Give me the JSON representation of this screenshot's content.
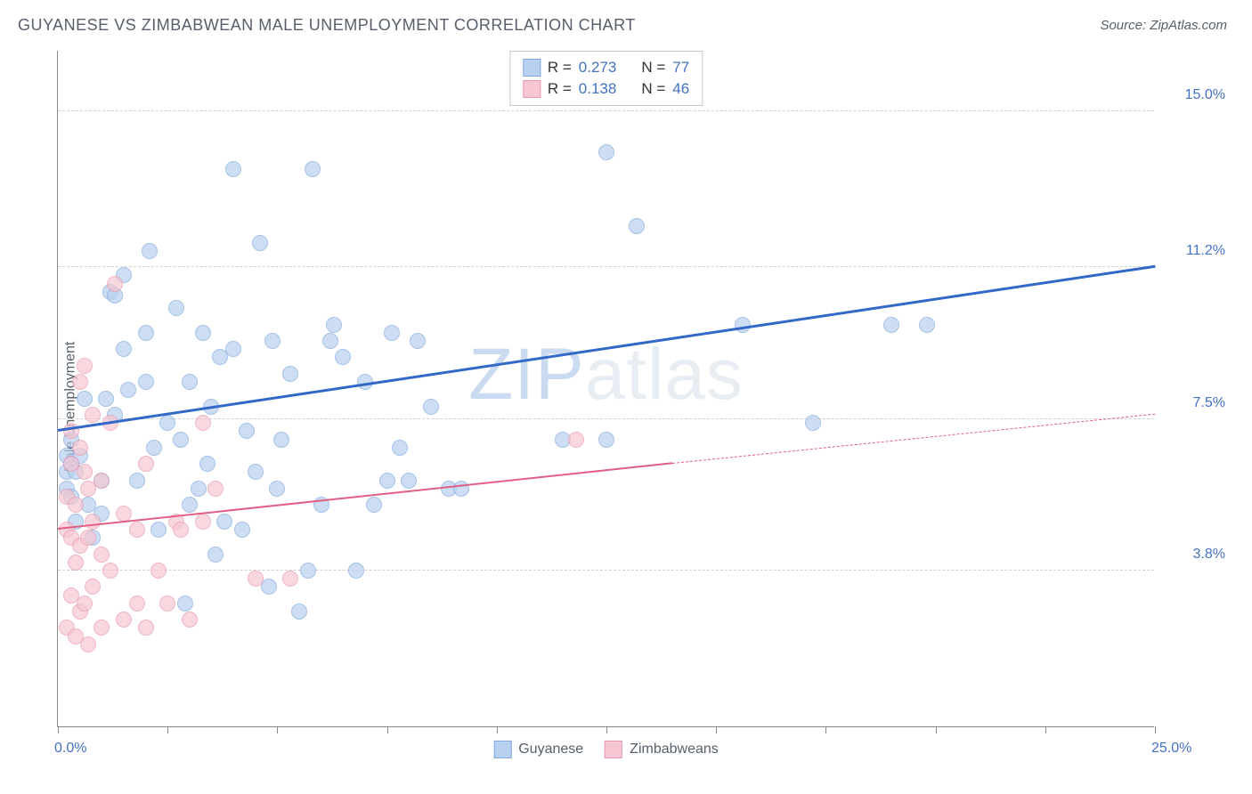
{
  "title": "GUYANESE VS ZIMBABWEAN MALE UNEMPLOYMENT CORRELATION CHART",
  "source_label": "Source: ZipAtlas.com",
  "ylabel": "Male Unemployment",
  "watermark": {
    "part1": "ZIP",
    "part2": "atlas"
  },
  "chart": {
    "type": "scatter",
    "xlim": [
      0,
      25
    ],
    "ylim": [
      0,
      16.5
    ],
    "background_color": "#ffffff",
    "grid_color": "#d0d0d0",
    "axis_color": "#888888",
    "x_ticks": [
      0,
      2.5,
      5,
      7.5,
      10,
      12.5,
      15,
      17.5,
      20,
      22.5,
      25
    ],
    "x_tick_labels": {
      "0": "0.0%",
      "25": "25.0%"
    },
    "y_gridlines": [
      3.8,
      7.5,
      11.2,
      15.0
    ],
    "y_tick_labels": [
      "3.8%",
      "7.5%",
      "11.2%",
      "15.0%"
    ],
    "point_radius": 9,
    "series": [
      {
        "name": "Guyanese",
        "fill_color": "#b8d0ef",
        "stroke_color": "#7fa9db",
        "fill_opacity": 0.7,
        "trend_color": "#3268c8",
        "trend": {
          "x1": 0,
          "y1": 7.2,
          "x2": 25,
          "y2": 11.2,
          "width": 2.5
        },
        "R": "0.273",
        "N": "77",
        "points": [
          [
            0.2,
            6.2
          ],
          [
            0.2,
            5.8
          ],
          [
            0.2,
            6.6
          ],
          [
            0.3,
            6.4
          ],
          [
            0.3,
            5.6
          ],
          [
            0.3,
            7.0
          ],
          [
            0.4,
            5.0
          ],
          [
            0.4,
            6.2
          ],
          [
            0.5,
            6.6
          ],
          [
            0.6,
            8.0
          ],
          [
            0.7,
            5.4
          ],
          [
            0.8,
            4.6
          ],
          [
            1.0,
            6.0
          ],
          [
            1.0,
            5.2
          ],
          [
            1.1,
            8.0
          ],
          [
            1.2,
            10.6
          ],
          [
            1.3,
            10.5
          ],
          [
            1.3,
            7.6
          ],
          [
            1.5,
            9.2
          ],
          [
            1.5,
            11.0
          ],
          [
            1.6,
            8.2
          ],
          [
            1.8,
            6.0
          ],
          [
            2.0,
            9.6
          ],
          [
            2.0,
            8.4
          ],
          [
            2.1,
            11.6
          ],
          [
            2.2,
            6.8
          ],
          [
            2.3,
            4.8
          ],
          [
            2.5,
            7.4
          ],
          [
            2.7,
            10.2
          ],
          [
            2.8,
            7.0
          ],
          [
            2.9,
            3.0
          ],
          [
            3.0,
            5.4
          ],
          [
            3.0,
            8.4
          ],
          [
            3.2,
            5.8
          ],
          [
            3.3,
            9.6
          ],
          [
            3.4,
            6.4
          ],
          [
            3.5,
            7.8
          ],
          [
            3.6,
            4.2
          ],
          [
            3.7,
            9.0
          ],
          [
            3.8,
            5.0
          ],
          [
            4.0,
            13.6
          ],
          [
            4.0,
            9.2
          ],
          [
            4.2,
            4.8
          ],
          [
            4.3,
            7.2
          ],
          [
            4.5,
            6.2
          ],
          [
            4.6,
            11.8
          ],
          [
            4.8,
            3.4
          ],
          [
            4.9,
            9.4
          ],
          [
            5.0,
            5.8
          ],
          [
            5.1,
            7.0
          ],
          [
            5.3,
            8.6
          ],
          [
            5.5,
            2.8
          ],
          [
            5.7,
            3.8
          ],
          [
            5.8,
            13.6
          ],
          [
            6.0,
            5.4
          ],
          [
            6.2,
            9.4
          ],
          [
            6.3,
            9.8
          ],
          [
            6.5,
            9.0
          ],
          [
            6.8,
            3.8
          ],
          [
            7.0,
            8.4
          ],
          [
            7.2,
            5.4
          ],
          [
            7.5,
            6.0
          ],
          [
            7.6,
            9.6
          ],
          [
            7.8,
            6.8
          ],
          [
            8.0,
            6.0
          ],
          [
            8.2,
            9.4
          ],
          [
            8.5,
            7.8
          ],
          [
            8.9,
            5.8
          ],
          [
            9.2,
            5.8
          ],
          [
            11.5,
            7.0
          ],
          [
            12.5,
            7.0
          ],
          [
            12.5,
            14.0
          ],
          [
            13.2,
            12.2
          ],
          [
            15.6,
            9.8
          ],
          [
            17.2,
            7.4
          ],
          [
            19.0,
            9.8
          ],
          [
            19.8,
            9.8
          ]
        ]
      },
      {
        "name": "Zimbabweans",
        "fill_color": "#f6c7d2",
        "stroke_color": "#e99ab0",
        "fill_opacity": 0.7,
        "trend_color": "#e15f84",
        "trend_solid": {
          "x1": 0,
          "y1": 4.8,
          "x2": 14,
          "y2": 6.4,
          "width": 2
        },
        "trend_dash": {
          "x1": 14,
          "y1": 6.4,
          "x2": 25,
          "y2": 7.6
        },
        "R": "0.138",
        "N": "46",
        "points": [
          [
            0.2,
            2.4
          ],
          [
            0.2,
            4.8
          ],
          [
            0.2,
            5.6
          ],
          [
            0.3,
            3.2
          ],
          [
            0.3,
            4.6
          ],
          [
            0.3,
            6.4
          ],
          [
            0.3,
            7.2
          ],
          [
            0.4,
            2.2
          ],
          [
            0.4,
            4.0
          ],
          [
            0.4,
            5.4
          ],
          [
            0.5,
            2.8
          ],
          [
            0.5,
            4.4
          ],
          [
            0.5,
            6.8
          ],
          [
            0.5,
            8.4
          ],
          [
            0.6,
            3.0
          ],
          [
            0.6,
            6.2
          ],
          [
            0.6,
            8.8
          ],
          [
            0.7,
            2.0
          ],
          [
            0.7,
            4.6
          ],
          [
            0.7,
            5.8
          ],
          [
            0.8,
            3.4
          ],
          [
            0.8,
            5.0
          ],
          [
            0.8,
            7.6
          ],
          [
            1.0,
            2.4
          ],
          [
            1.0,
            4.2
          ],
          [
            1.0,
            6.0
          ],
          [
            1.2,
            3.8
          ],
          [
            1.2,
            7.4
          ],
          [
            1.3,
            10.8
          ],
          [
            1.5,
            2.6
          ],
          [
            1.5,
            5.2
          ],
          [
            1.8,
            3.0
          ],
          [
            1.8,
            4.8
          ],
          [
            2.0,
            2.4
          ],
          [
            2.0,
            6.4
          ],
          [
            2.3,
            3.8
          ],
          [
            2.5,
            3.0
          ],
          [
            2.7,
            5.0
          ],
          [
            2.8,
            4.8
          ],
          [
            3.0,
            2.6
          ],
          [
            3.3,
            5.0
          ],
          [
            3.3,
            7.4
          ],
          [
            3.6,
            5.8
          ],
          [
            4.5,
            3.6
          ],
          [
            5.3,
            3.6
          ],
          [
            11.8,
            7.0
          ]
        ]
      }
    ]
  },
  "legend_top": {
    "rows": [
      {
        "swatch_fill": "#b8d0ef",
        "swatch_stroke": "#7fa9db",
        "R_label": "R =",
        "R": "0.273",
        "N_label": "N =",
        "N": "77"
      },
      {
        "swatch_fill": "#f6c7d2",
        "swatch_stroke": "#e99ab0",
        "R_label": "R =",
        "R": "0.138",
        "N_label": "N =",
        "N": "46"
      }
    ]
  },
  "legend_bottom": {
    "items": [
      {
        "swatch_fill": "#b8d0ef",
        "swatch_stroke": "#7fa9db",
        "label": "Guyanese"
      },
      {
        "swatch_fill": "#f6c7d2",
        "swatch_stroke": "#e99ab0",
        "label": "Zimbabweans"
      }
    ]
  }
}
